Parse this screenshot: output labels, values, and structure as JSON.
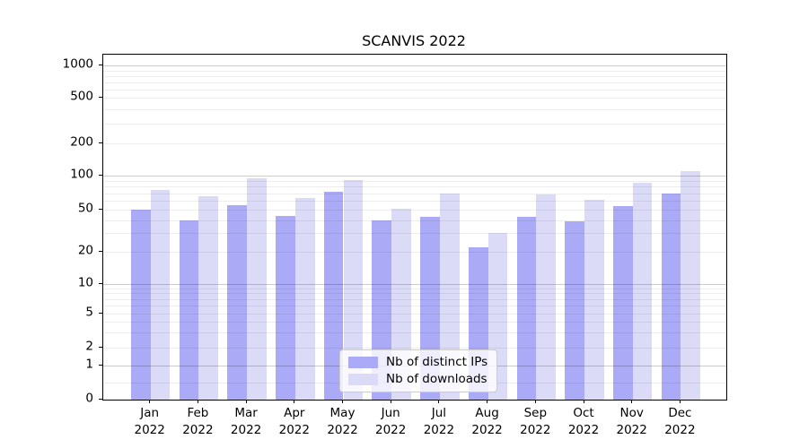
{
  "figure": {
    "title": "SCANVIS 2022"
  },
  "chart_data": {
    "type": "bar",
    "title": "SCANVIS 2022",
    "yscale": "symlog",
    "grid": "both",
    "legend_position": "lower center",
    "y_ticks": [
      0,
      1,
      2,
      5,
      10,
      20,
      50,
      100,
      200,
      500,
      1000
    ],
    "y_minor_gridlines": [
      0.5,
      2,
      5,
      20,
      50,
      200,
      500,
      3,
      4,
      6,
      7,
      8,
      9,
      30,
      40,
      60,
      70,
      80,
      90,
      300,
      400,
      600,
      700,
      800,
      900
    ],
    "y_major_gridlines": [
      1,
      10,
      100,
      1000
    ],
    "ylim": [
      0,
      1300
    ],
    "categories": [
      {
        "month": "Jan",
        "year": "2022"
      },
      {
        "month": "Feb",
        "year": "2022"
      },
      {
        "month": "Mar",
        "year": "2022"
      },
      {
        "month": "Apr",
        "year": "2022"
      },
      {
        "month": "May",
        "year": "2022"
      },
      {
        "month": "Jun",
        "year": "2022"
      },
      {
        "month": "Jul",
        "year": "2022"
      },
      {
        "month": "Aug",
        "year": "2022"
      },
      {
        "month": "Sep",
        "year": "2022"
      },
      {
        "month": "Oct",
        "year": "2022"
      },
      {
        "month": "Nov",
        "year": "2022"
      },
      {
        "month": "Dec",
        "year": "2022"
      }
    ],
    "series": [
      {
        "key": "distinct-ips",
        "name": "Nb of distinct IPs",
        "color": "#aaaaf6",
        "values": [
          50,
          40,
          55,
          44,
          72,
          40,
          43,
          22,
          43,
          39,
          54,
          70
        ]
      },
      {
        "key": "downloads",
        "name": "Nb of downloads",
        "color": "#dbdbf8",
        "values": [
          75,
          66,
          95,
          64,
          92,
          51,
          70,
          30,
          68,
          61,
          86,
          110
        ]
      }
    ]
  }
}
